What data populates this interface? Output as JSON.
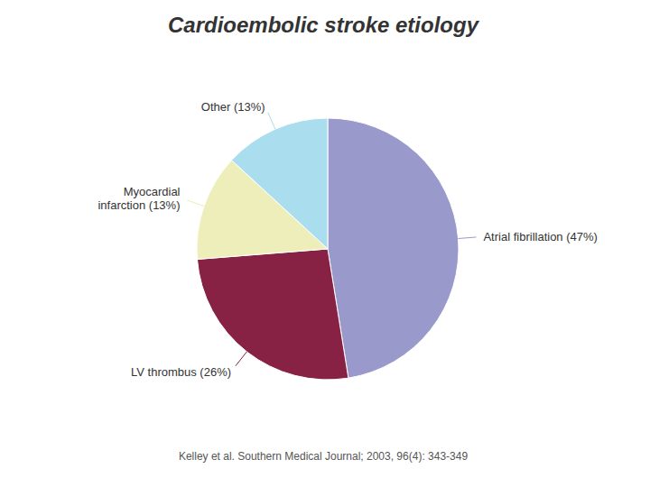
{
  "chart_data": {
    "type": "pie",
    "title": "Cardioembolic stroke etiology",
    "categories": [
      "Atrial fibrillation (47%)",
      "LV thrombus (26%)",
      "Myocardial\ninfarction (13%)",
      "Other (13%)"
    ],
    "values": [
      47,
      26,
      13,
      13
    ],
    "colors": [
      "#9999cc",
      "#882244",
      "#eeeebb",
      "#aaddee"
    ],
    "annotations": [
      "Kelley et al. Southern Medical Journal; 2003, 96(4): 343-349"
    ]
  }
}
